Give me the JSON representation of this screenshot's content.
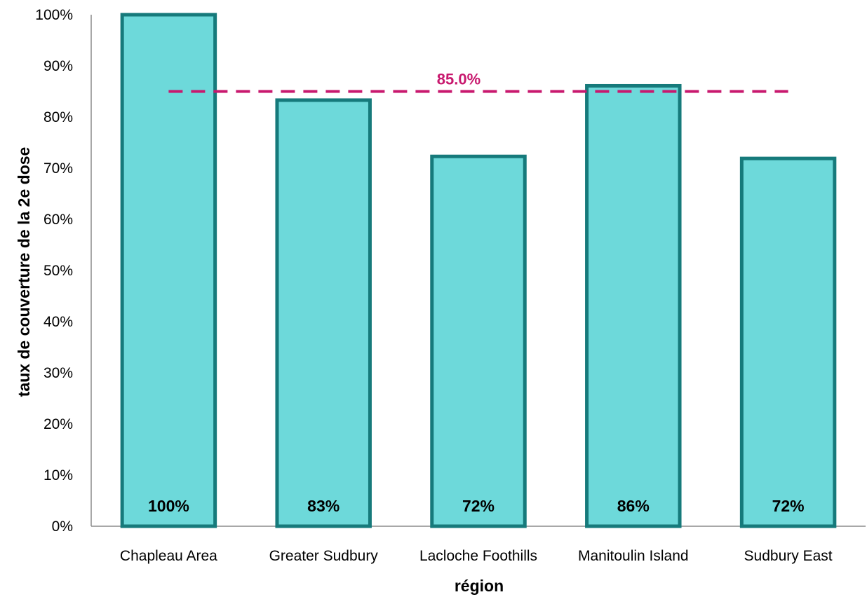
{
  "chart_data": {
    "type": "bar",
    "categories": [
      "Chapleau Area",
      "Greater Sudbury",
      "Lacloche Foothills",
      "Manitoulin Island",
      "Sudbury East"
    ],
    "series": [
      {
        "values": [
          100,
          83.3,
          72.3,
          86.1,
          71.9
        ],
        "data_labels": [
          "100%",
          "83%",
          "72%",
          "86%",
          "72%"
        ]
      }
    ],
    "reference_line": {
      "value": 85.0,
      "label": "85.0%",
      "style": "dashed"
    },
    "xlabel": "région",
    "ylabel": "taux de couverture de la 2e dose",
    "ylim": [
      0,
      100
    ],
    "yticks": [
      "0%",
      "10%",
      "20%",
      "30%",
      "40%",
      "50%",
      "60%",
      "70%",
      "80%",
      "90%",
      "100%"
    ],
    "grid": false,
    "legend": "none",
    "colors": {
      "bar_fill": "#6dd9da",
      "bar_border": "#167a7b",
      "reference_line": "#c8186e",
      "axis": "#8c8c8c"
    }
  }
}
